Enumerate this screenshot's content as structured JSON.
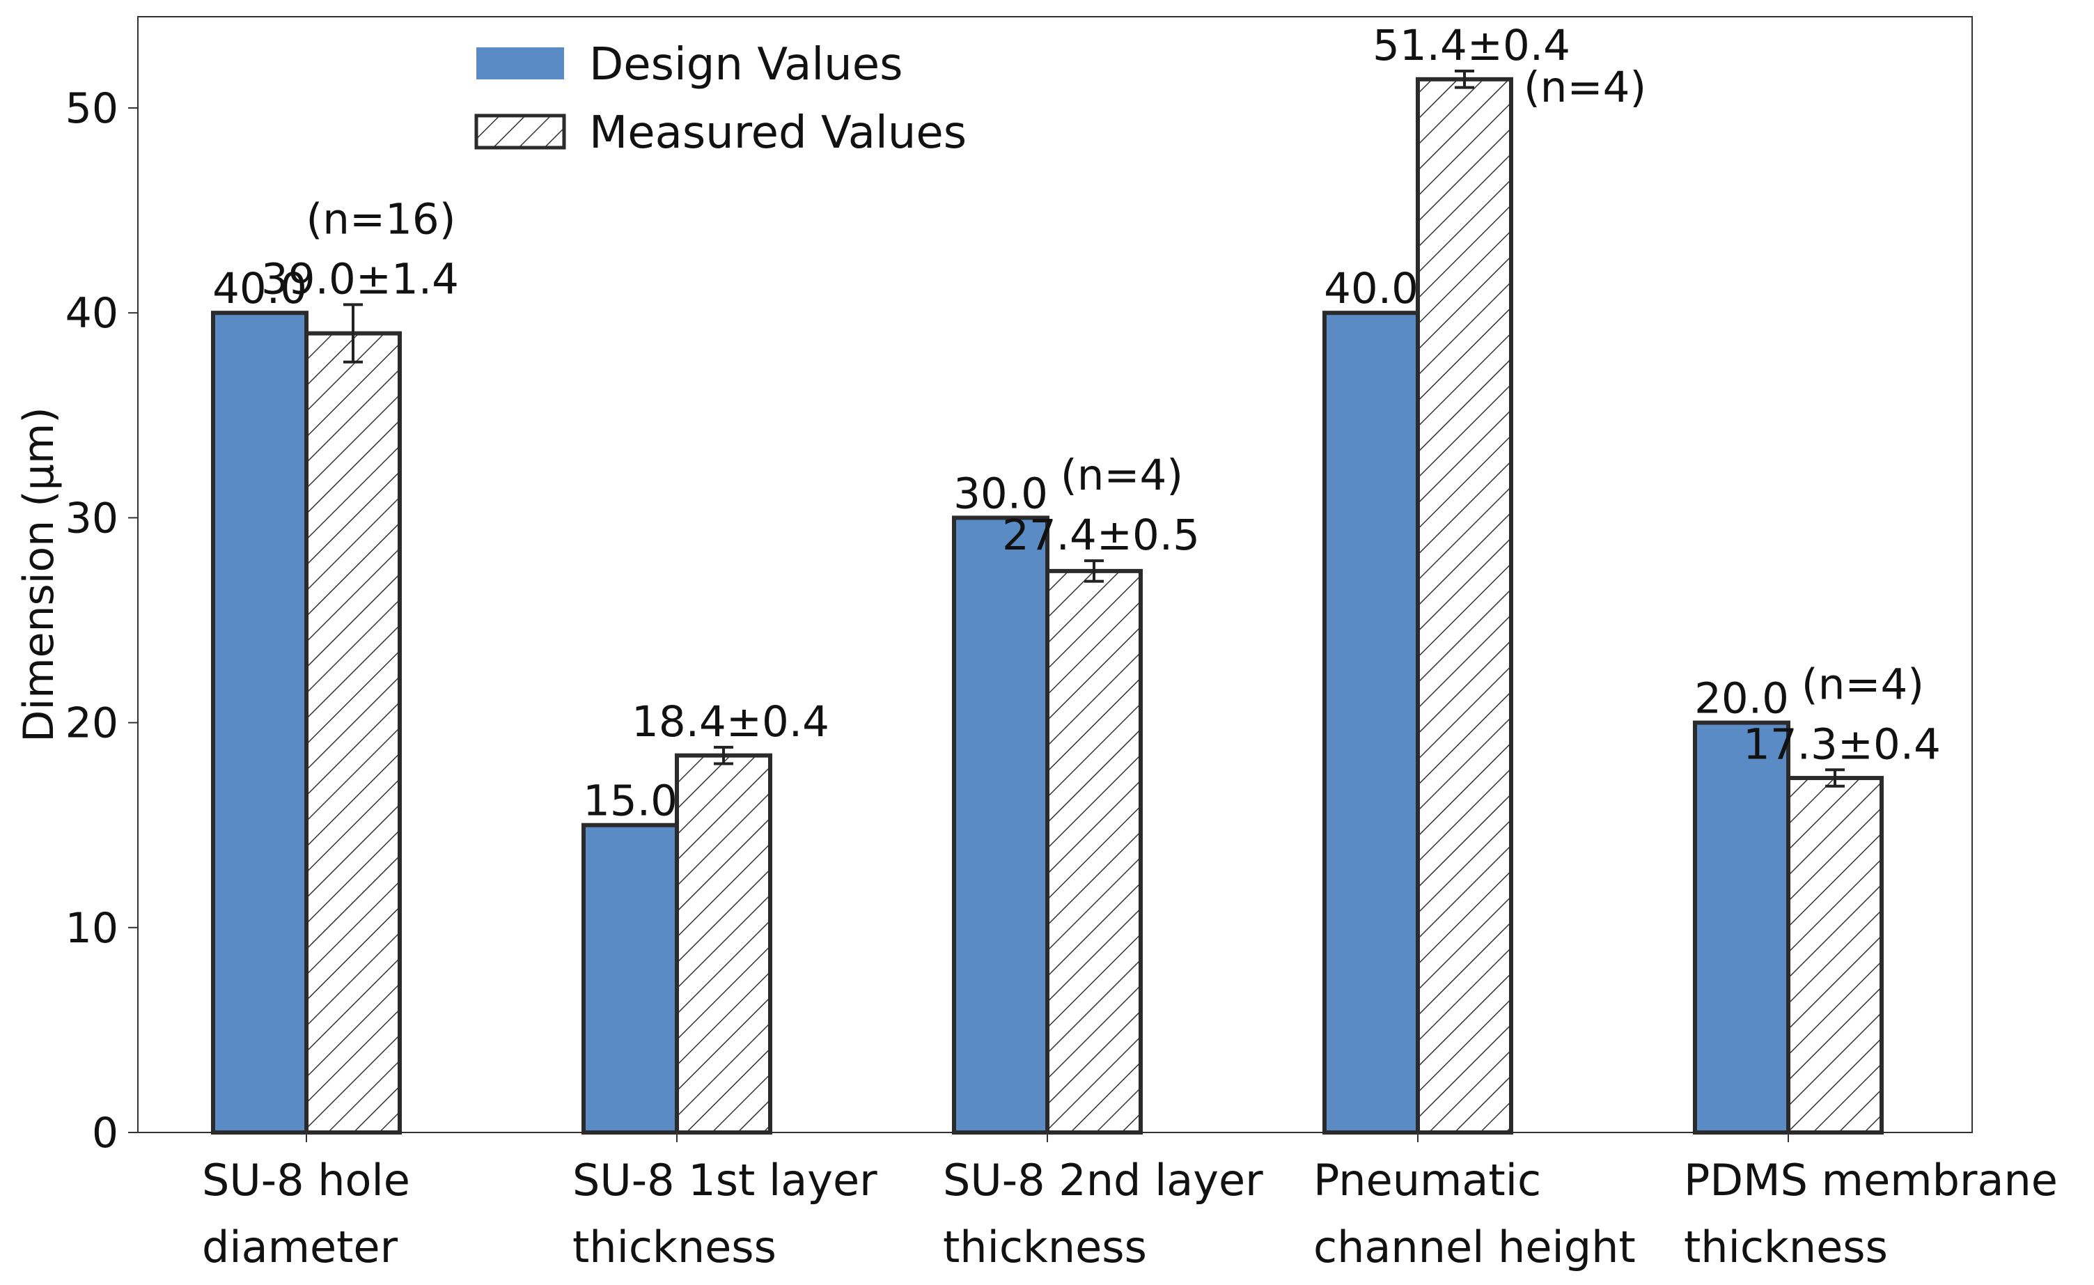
{
  "chart_data": {
    "type": "bar",
    "title": "",
    "xlabel": "",
    "ylabel": "Dimension (µm)",
    "ylim": [
      0,
      55
    ],
    "yticks": [
      0,
      10,
      20,
      30,
      40,
      50
    ],
    "yticklabels": [
      "0",
      "10",
      "20",
      "30",
      "40",
      "50"
    ],
    "categories": [
      [
        "SU-8 hole",
        "diameter"
      ],
      [
        "SU-8 1st layer",
        "thickness"
      ],
      [
        "SU-8 2nd layer",
        "thickness"
      ],
      [
        "Pneumatic",
        "channel height"
      ],
      [
        "PDMS membrane",
        "thickness"
      ]
    ],
    "series": [
      {
        "name": "Design Values",
        "style": "solid",
        "color": "#5b8bc4",
        "values": [
          40.0,
          15.0,
          30.0,
          40.0,
          20.0
        ],
        "labels": [
          "40.0",
          "15.0",
          "30.0",
          "40.0",
          "20.0"
        ]
      },
      {
        "name": "Measured Values",
        "style": "hatched",
        "color": "#ffffff",
        "values": [
          39.0,
          18.4,
          27.4,
          51.4,
          17.3
        ],
        "errors": [
          1.4,
          0.4,
          0.5,
          0.4,
          0.4
        ],
        "labels": [
          "39.0±1.4",
          "18.4±0.4",
          "27.4±0.5",
          "51.4±0.4",
          "17.3±0.4"
        ],
        "n_labels": [
          "(n=16)",
          "",
          "(n=4)",
          "(n=4)",
          "(n=4)"
        ]
      }
    ],
    "legend": {
      "position": "top-left",
      "entries": [
        "Design Values",
        "Measured Values"
      ]
    },
    "grid": false
  }
}
